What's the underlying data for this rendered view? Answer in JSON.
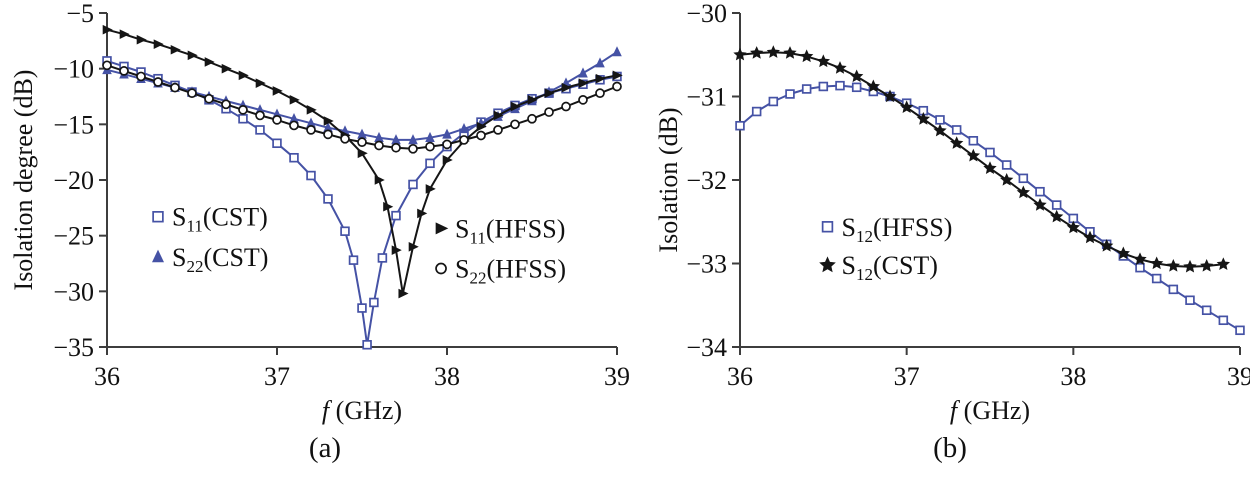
{
  "figure": {
    "background": "#ffffff",
    "text_color": "#111111",
    "axis_color": "#3d3d3d"
  },
  "captions": {
    "a": "(a)",
    "b": "(b)"
  },
  "chart_data": [
    {
      "id": "a",
      "type": "line",
      "title": "",
      "xlabel": {
        "italic": "f",
        "rest": " (GHz)"
      },
      "ylabel": "Isolation degree (dB)",
      "xlim": [
        36,
        39
      ],
      "ylim": [
        -35,
        -5
      ],
      "xticks": [
        36,
        37,
        38,
        39
      ],
      "yticks": [
        -5,
        -10,
        -15,
        -20,
        -25,
        -30,
        -35
      ],
      "grid": false,
      "legend_position": "inside-lower",
      "series": [
        {
          "name": "S11(CST)",
          "label": {
            "prefix": "S",
            "sub": "11",
            "suffix": "(CST)"
          },
          "color": "#4552a5",
          "marker": "open-square",
          "points": [
            [
              36,
              -9.3
            ],
            [
              36.1,
              -9.8
            ],
            [
              36.2,
              -10.3
            ],
            [
              36.3,
              -10.9
            ],
            [
              36.4,
              -11.5
            ],
            [
              36.5,
              -12.1
            ],
            [
              36.6,
              -12.8
            ],
            [
              36.7,
              -13.6
            ],
            [
              36.8,
              -14.5
            ],
            [
              36.9,
              -15.5
            ],
            [
              37,
              -16.7
            ],
            [
              37.1,
              -18
            ],
            [
              37.2,
              -19.6
            ],
            [
              37.3,
              -21.7
            ],
            [
              37.4,
              -24.6
            ],
            [
              37.45,
              -27.2
            ],
            [
              37.5,
              -31.5
            ],
            [
              37.53,
              -34.8
            ],
            [
              37.57,
              -31
            ],
            [
              37.62,
              -27
            ],
            [
              37.7,
              -23.2
            ],
            [
              37.8,
              -20.4
            ],
            [
              37.9,
              -18.5
            ],
            [
              38,
              -17
            ],
            [
              38.1,
              -15.8
            ],
            [
              38.2,
              -14.8
            ],
            [
              38.3,
              -14
            ],
            [
              38.4,
              -13.3
            ],
            [
              38.5,
              -12.7
            ],
            [
              38.6,
              -12.2
            ],
            [
              38.7,
              -11.8
            ],
            [
              38.8,
              -11.4
            ],
            [
              38.9,
              -11
            ],
            [
              39,
              -10.7
            ]
          ]
        },
        {
          "name": "S22(CST)",
          "label": {
            "prefix": "S",
            "sub": "22",
            "suffix": "(CST)"
          },
          "color": "#4552a5",
          "marker": "triangle-up",
          "points": [
            [
              36,
              -10.1
            ],
            [
              36.1,
              -10.5
            ],
            [
              36.2,
              -10.9
            ],
            [
              36.3,
              -11.3
            ],
            [
              36.4,
              -11.7
            ],
            [
              36.5,
              -12.1
            ],
            [
              36.6,
              -12.5
            ],
            [
              36.7,
              -12.9
            ],
            [
              36.8,
              -13.3
            ],
            [
              36.9,
              -13.7
            ],
            [
              37,
              -14.1
            ],
            [
              37.1,
              -14.5
            ],
            [
              37.2,
              -14.9
            ],
            [
              37.3,
              -15.3
            ],
            [
              37.4,
              -15.6
            ],
            [
              37.5,
              -15.9
            ],
            [
              37.6,
              -16.2
            ],
            [
              37.7,
              -16.4
            ],
            [
              37.8,
              -16.4
            ],
            [
              37.9,
              -16.2
            ],
            [
              38,
              -15.9
            ],
            [
              38.1,
              -15.4
            ],
            [
              38.2,
              -14.9
            ],
            [
              38.3,
              -14.3
            ],
            [
              38.4,
              -13.6
            ],
            [
              38.5,
              -12.9
            ],
            [
              38.6,
              -12.1
            ],
            [
              38.7,
              -11.3
            ],
            [
              38.8,
              -10.4
            ],
            [
              38.9,
              -9.5
            ],
            [
              39,
              -8.5
            ]
          ]
        },
        {
          "name": "S11(HFSS)",
          "label": {
            "prefix": "S",
            "sub": "11",
            "suffix": "(HFSS)"
          },
          "color": "#151515",
          "marker": "triangle-right",
          "points": [
            [
              36,
              -6.5
            ],
            [
              36.1,
              -6.9
            ],
            [
              36.2,
              -7.4
            ],
            [
              36.3,
              -7.8
            ],
            [
              36.4,
              -8.3
            ],
            [
              36.5,
              -8.8
            ],
            [
              36.6,
              -9.4
            ],
            [
              36.7,
              -10
            ],
            [
              36.8,
              -10.6
            ],
            [
              36.9,
              -11.3
            ],
            [
              37,
              -12
            ],
            [
              37.1,
              -12.8
            ],
            [
              37.2,
              -13.7
            ],
            [
              37.3,
              -14.7
            ],
            [
              37.4,
              -16
            ],
            [
              37.5,
              -17.6
            ],
            [
              37.6,
              -20
            ],
            [
              37.65,
              -22.4
            ],
            [
              37.7,
              -26.3
            ],
            [
              37.74,
              -30.2
            ],
            [
              37.8,
              -26
            ],
            [
              37.85,
              -23
            ],
            [
              37.9,
              -20.8
            ],
            [
              38,
              -18.2
            ],
            [
              38.1,
              -16.5
            ],
            [
              38.2,
              -15.2
            ],
            [
              38.3,
              -14.2
            ],
            [
              38.4,
              -13.4
            ],
            [
              38.5,
              -12.8
            ],
            [
              38.6,
              -12.2
            ],
            [
              38.7,
              -11.7
            ],
            [
              38.8,
              -11.3
            ],
            [
              38.9,
              -10.9
            ],
            [
              39,
              -10.6
            ]
          ]
        },
        {
          "name": "S22(HFSS)",
          "label": {
            "prefix": "S",
            "sub": "22",
            "suffix": "(HFSS)"
          },
          "color": "#151515",
          "marker": "open-circle",
          "points": [
            [
              36,
              -9.7
            ],
            [
              36.1,
              -10.2
            ],
            [
              36.2,
              -10.7
            ],
            [
              36.3,
              -11.2
            ],
            [
              36.4,
              -11.7
            ],
            [
              36.5,
              -12.2
            ],
            [
              36.6,
              -12.7
            ],
            [
              36.7,
              -13.2
            ],
            [
              36.8,
              -13.7
            ],
            [
              36.9,
              -14.2
            ],
            [
              37,
              -14.6
            ],
            [
              37.1,
              -15.1
            ],
            [
              37.2,
              -15.5
            ],
            [
              37.3,
              -15.9
            ],
            [
              37.4,
              -16.3
            ],
            [
              37.5,
              -16.6
            ],
            [
              37.6,
              -16.9
            ],
            [
              37.7,
              -17.1
            ],
            [
              37.8,
              -17.2
            ],
            [
              37.9,
              -17
            ],
            [
              38,
              -16.8
            ],
            [
              38.1,
              -16.4
            ],
            [
              38.2,
              -16
            ],
            [
              38.3,
              -15.5
            ],
            [
              38.4,
              -15
            ],
            [
              38.5,
              -14.5
            ],
            [
              38.6,
              -13.9
            ],
            [
              38.7,
              -13.4
            ],
            [
              38.8,
              -12.8
            ],
            [
              38.9,
              -12.2
            ],
            [
              39,
              -11.6
            ]
          ]
        }
      ],
      "legend": [
        {
          "series": 0,
          "fx": 0.1,
          "fy": 0.61
        },
        {
          "series": 1,
          "fx": 0.1,
          "fy": 0.73
        },
        {
          "series": 2,
          "fx": 0.655,
          "fy": 0.645
        },
        {
          "series": 3,
          "fx": 0.655,
          "fy": 0.765
        }
      ]
    },
    {
      "id": "b",
      "type": "line",
      "title": "",
      "xlabel": {
        "italic": "f",
        "rest": " (GHz)"
      },
      "ylabel": "Isolation (dB)",
      "xlim": [
        36,
        39
      ],
      "ylim": [
        -34,
        -30
      ],
      "xticks": [
        36,
        37,
        38,
        39
      ],
      "yticks": [
        -30,
        -31,
        -32,
        -33,
        -34
      ],
      "grid": false,
      "legend_position": "inside-left",
      "series": [
        {
          "name": "S12(HFSS)",
          "label": {
            "prefix": "S",
            "sub": "12",
            "suffix": "(HFSS)"
          },
          "color": "#4552a5",
          "marker": "open-square",
          "points": [
            [
              36,
              -31.35
            ],
            [
              36.1,
              -31.18
            ],
            [
              36.2,
              -31.06
            ],
            [
              36.3,
              -30.97
            ],
            [
              36.4,
              -30.91
            ],
            [
              36.5,
              -30.88
            ],
            [
              36.6,
              -30.87
            ],
            [
              36.7,
              -30.89
            ],
            [
              36.8,
              -30.94
            ],
            [
              36.9,
              -31
            ],
            [
              37,
              -31.08
            ],
            [
              37.1,
              -31.17
            ],
            [
              37.2,
              -31.28
            ],
            [
              37.3,
              -31.4
            ],
            [
              37.4,
              -31.53
            ],
            [
              37.5,
              -31.67
            ],
            [
              37.6,
              -31.82
            ],
            [
              37.7,
              -31.98
            ],
            [
              37.8,
              -32.14
            ],
            [
              37.9,
              -32.3
            ],
            [
              38,
              -32.46
            ],
            [
              38.1,
              -32.62
            ],
            [
              38.2,
              -32.77
            ],
            [
              38.3,
              -32.91
            ],
            [
              38.4,
              -33.05
            ],
            [
              38.5,
              -33.18
            ],
            [
              38.6,
              -33.31
            ],
            [
              38.7,
              -33.44
            ],
            [
              38.8,
              -33.56
            ],
            [
              38.9,
              -33.68
            ],
            [
              39,
              -33.8
            ]
          ]
        },
        {
          "name": "S12(CST)",
          "label": {
            "prefix": "S",
            "sub": "12",
            "suffix": "(CST)"
          },
          "color": "#151515",
          "marker": "star",
          "points": [
            [
              36,
              -30.5
            ],
            [
              36.1,
              -30.48
            ],
            [
              36.2,
              -30.47
            ],
            [
              36.3,
              -30.48
            ],
            [
              36.4,
              -30.52
            ],
            [
              36.5,
              -30.58
            ],
            [
              36.6,
              -30.66
            ],
            [
              36.7,
              -30.76
            ],
            [
              36.8,
              -30.88
            ],
            [
              36.9,
              -31
            ],
            [
              37,
              -31.13
            ],
            [
              37.1,
              -31.27
            ],
            [
              37.2,
              -31.41
            ],
            [
              37.3,
              -31.56
            ],
            [
              37.4,
              -31.71
            ],
            [
              37.5,
              -31.86
            ],
            [
              37.6,
              -32
            ],
            [
              37.7,
              -32.15
            ],
            [
              37.8,
              -32.3
            ],
            [
              37.9,
              -32.44
            ],
            [
              38,
              -32.57
            ],
            [
              38.1,
              -32.69
            ],
            [
              38.2,
              -32.79
            ],
            [
              38.3,
              -32.88
            ],
            [
              38.4,
              -32.95
            ],
            [
              38.5,
              -33
            ],
            [
              38.6,
              -33.03
            ],
            [
              38.7,
              -33.04
            ],
            [
              38.8,
              -33.03
            ],
            [
              38.9,
              -33.01
            ]
          ]
        }
      ],
      "legend": [
        {
          "series": 0,
          "fx": 0.175,
          "fy": 0.64
        },
        {
          "series": 1,
          "fx": 0.175,
          "fy": 0.755
        }
      ]
    }
  ]
}
